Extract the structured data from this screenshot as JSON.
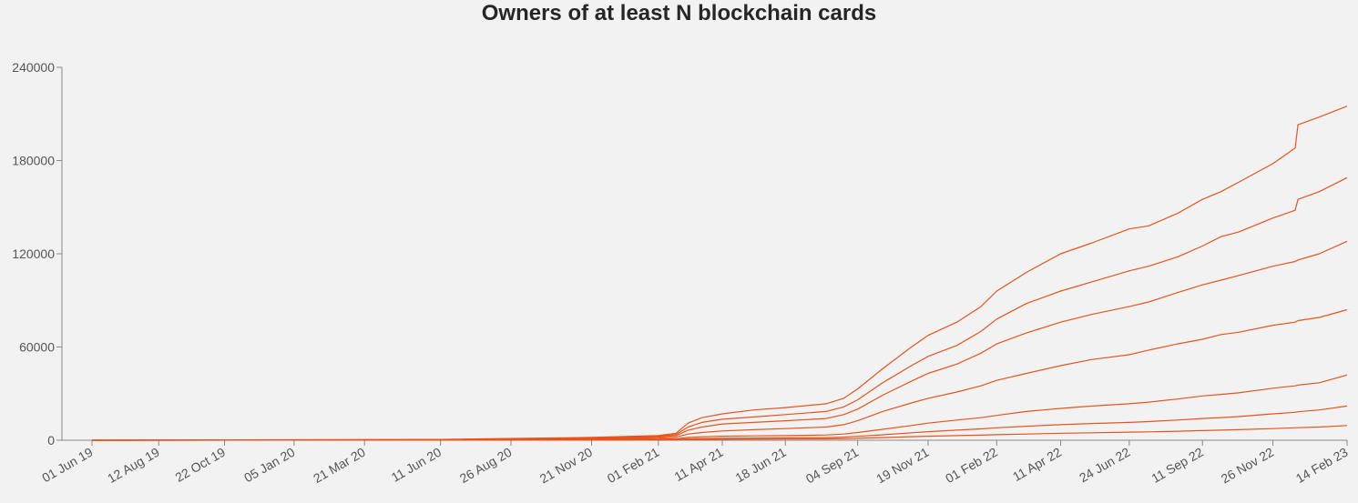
{
  "chart_data": {
    "type": "line",
    "title": "Owners of at least N blockchain cards",
    "xlabel": "",
    "ylabel": "",
    "x_ticks": [
      "01 Jun 19",
      "12 Aug 19",
      "22 Oct 19",
      "05 Jan 20",
      "21 Mar 20",
      "11 Jun 20",
      "26 Aug 20",
      "21 Nov 20",
      "01 Feb 21",
      "11 Apr 21",
      "18 Jun 21",
      "04 Sep 21",
      "19 Nov 21",
      "01 Feb 22",
      "11 Apr 22",
      "24 Jun 22",
      "11 Sep 22",
      "26 Nov 22",
      "14 Feb 23"
    ],
    "y_ticks": [
      "0",
      "60000",
      "120000",
      "180000",
      "240000"
    ],
    "ylim": [
      0,
      240000
    ],
    "grid": false,
    "legend": "none",
    "color": "#e8541c",
    "x": [
      "2019-06-01",
      "2020-06-11",
      "2020-11-21",
      "2021-02-01",
      "2021-02-20",
      "2021-03-05",
      "2021-03-20",
      "2021-04-11",
      "2021-05-15",
      "2021-06-18",
      "2021-08-01",
      "2021-08-20",
      "2021-09-04",
      "2021-10-01",
      "2021-11-01",
      "2021-11-19",
      "2021-12-20",
      "2022-01-15",
      "2022-02-01",
      "2022-03-05",
      "2022-04-11",
      "2022-05-15",
      "2022-06-24",
      "2022-07-15",
      "2022-08-15",
      "2022-09-11",
      "2022-10-01",
      "2022-10-20",
      "2022-11-26",
      "2022-12-20",
      "2022-12-23",
      "2023-01-15",
      "2023-02-14"
    ],
    "series": [
      {
        "values": [
          0,
          500,
          1800,
          3000,
          4500,
          11000,
          14500,
          17000,
          19500,
          21000,
          23500,
          27000,
          33000,
          46000,
          60000,
          67500,
          76000,
          86000,
          96000,
          108000,
          120000,
          127000,
          136000,
          138000,
          146000,
          155000,
          160000,
          166000,
          178000,
          188000,
          203000,
          208000,
          215000
        ]
      },
      {
        "values": [
          0,
          400,
          1500,
          2500,
          3700,
          8500,
          11500,
          13500,
          15000,
          16500,
          18500,
          21500,
          26000,
          37000,
          48000,
          54000,
          61000,
          70000,
          78000,
          88000,
          96000,
          102000,
          109000,
          112000,
          118000,
          125000,
          131000,
          134000,
          143000,
          148000,
          155000,
          160000,
          169000
        ]
      },
      {
        "values": [
          0,
          300,
          1200,
          2000,
          3000,
          6500,
          8500,
          10500,
          11500,
          12500,
          14000,
          16500,
          20000,
          29000,
          38000,
          43000,
          49000,
          56000,
          62000,
          69000,
          76000,
          81000,
          86000,
          89000,
          95000,
          100000,
          103000,
          106000,
          112000,
          115000,
          116000,
          120000,
          128000
        ]
      },
      {
        "values": [
          0,
          200,
          800,
          1300,
          2000,
          4000,
          5000,
          6000,
          6800,
          7500,
          8500,
          10000,
          12500,
          18500,
          24000,
          27000,
          31000,
          35000,
          38500,
          43000,
          48000,
          52000,
          55000,
          58000,
          62000,
          65000,
          68000,
          69500,
          74000,
          76000,
          77000,
          79000,
          84000
        ]
      },
      {
        "values": [
          0,
          100,
          400,
          700,
          1000,
          1800,
          2200,
          2600,
          2800,
          3000,
          3400,
          4000,
          5000,
          7000,
          9500,
          11000,
          13000,
          14500,
          16000,
          18500,
          20500,
          22000,
          23500,
          24500,
          26500,
          28500,
          29500,
          30500,
          33500,
          35000,
          35500,
          37000,
          42000
        ]
      },
      {
        "values": [
          0,
          60,
          250,
          400,
          550,
          900,
          1100,
          1300,
          1400,
          1500,
          1700,
          2000,
          2500,
          3500,
          4800,
          5500,
          6500,
          7300,
          8000,
          9000,
          10000,
          10800,
          11500,
          12000,
          13000,
          14000,
          14600,
          15200,
          17000,
          18000,
          18300,
          19500,
          22000
        ]
      },
      {
        "values": [
          0,
          30,
          120,
          200,
          280,
          450,
          550,
          650,
          700,
          750,
          850,
          1000,
          1200,
          1700,
          2300,
          2600,
          3000,
          3300,
          3600,
          4000,
          4500,
          4800,
          5200,
          5400,
          5800,
          6200,
          6500,
          6800,
          7500,
          8000,
          8100,
          8500,
          9500
        ]
      }
    ]
  }
}
